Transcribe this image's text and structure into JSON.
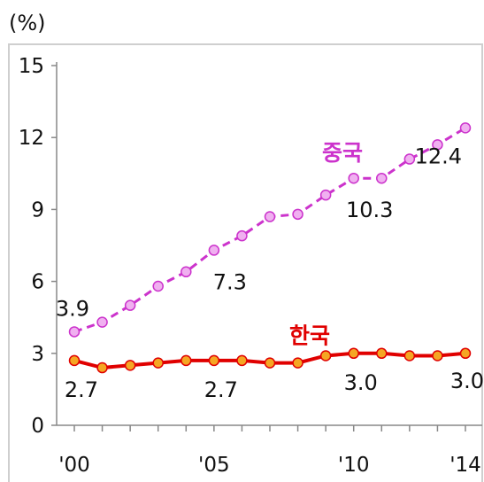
{
  "unit": "(%)",
  "chart_data": {
    "type": "line",
    "x": [
      2000,
      2001,
      2002,
      2003,
      2004,
      2005,
      2006,
      2007,
      2008,
      2009,
      2010,
      2011,
      2012,
      2013,
      2014
    ],
    "xticks": [
      {
        "value": 2000,
        "label": "'00"
      },
      {
        "value": 2005,
        "label": "'05"
      },
      {
        "value": 2010,
        "label": "'10"
      },
      {
        "value": 2014,
        "label": "'14"
      }
    ],
    "ylim": [
      0,
      15
    ],
    "yticks": [
      0,
      3,
      6,
      9,
      12,
      15
    ],
    "grid": false,
    "series": [
      {
        "name": "중국",
        "color": "#cc33cc",
        "marker_fill": "#f0b0f0",
        "line_style": "dashed",
        "values": [
          3.9,
          4.3,
          5.0,
          5.8,
          6.4,
          7.3,
          7.9,
          8.7,
          8.8,
          9.6,
          10.3,
          10.3,
          11.1,
          11.7,
          12.4
        ],
        "data_labels": [
          {
            "index": 0,
            "text": "3.9"
          },
          {
            "index": 5,
            "text": "7.3"
          },
          {
            "index": 10,
            "text": "10.3"
          },
          {
            "index": 14,
            "text": "12.4"
          }
        ]
      },
      {
        "name": "한국",
        "color": "#e00000",
        "marker_fill": "#f5a623",
        "line_style": "solid",
        "values": [
          2.7,
          2.4,
          2.5,
          2.6,
          2.7,
          2.7,
          2.7,
          2.6,
          2.6,
          2.9,
          3.0,
          3.0,
          2.9,
          2.9,
          3.0
        ],
        "data_labels": [
          {
            "index": 0,
            "text": "2.7"
          },
          {
            "index": 5,
            "text": "2.7"
          },
          {
            "index": 10,
            "text": "3.0"
          },
          {
            "index": 14,
            "text": "3.0"
          }
        ]
      }
    ]
  }
}
